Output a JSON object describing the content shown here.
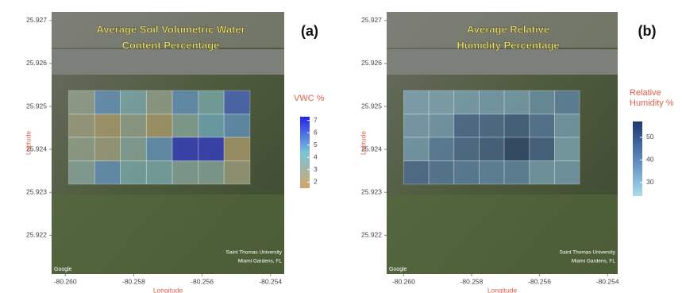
{
  "chart_data": [
    {
      "type": "heatmap",
      "panel_label": "(a)",
      "title": [
        "Average Soil Volumetric Water",
        "Content Percentage"
      ],
      "xlabel": "Longitude",
      "ylabel": "Latitude",
      "xlim": [
        -80.2604,
        -80.2536
      ],
      "ylim": [
        25.9211,
        25.9272
      ],
      "xticks": [
        {
          "value": -80.26,
          "label": "-80.260"
        },
        -80.258,
        -80.256,
        -80.254
      ],
      "yticks": [
        25.927,
        25.926,
        25.925,
        25.924,
        25.923,
        25.922
      ],
      "xbins": [
        -80.2599,
        -80.25914,
        -80.25839,
        -80.25763,
        -80.25687,
        -80.25611,
        -80.25536,
        -80.2546
      ],
      "ybins": [
        25.92537,
        25.92482,
        25.92428,
        25.92373,
        25.92319
      ],
      "values": [
        [
          3,
          5,
          4,
          3,
          5,
          4,
          6
        ],
        [
          2.5,
          2,
          3,
          2,
          3.5,
          4.5,
          5
        ],
        [
          3,
          2.5,
          3.5,
          5,
          7,
          7,
          2
        ],
        [
          3.5,
          5,
          4,
          4,
          3.5,
          3.5,
          2.5
        ]
      ],
      "colorbar": {
        "title": [
          "VWC %"
        ],
        "lim": [
          1.5,
          7.3
        ],
        "ticks": [
          2,
          3,
          4,
          5,
          6,
          7
        ],
        "colors": [
          "#d2a766",
          "#7cc4dc",
          "#2424e6"
        ]
      },
      "attribution": [
        "Saint Thomas University",
        "Miami Gardens, FL"
      ],
      "map_source": "Google"
    },
    {
      "type": "heatmap",
      "panel_label": "(b)",
      "title": [
        "Average Relative",
        "Humidity Percentage"
      ],
      "xlabel": "Longitude",
      "ylabel": "Latitude",
      "xlim": [
        -80.2605,
        -80.2537
      ],
      "ylim": [
        25.9211,
        25.9272
      ],
      "xticks": [
        {
          "value": -80.26,
          "label": "-80.260"
        },
        -80.258,
        -80.256,
        -80.254
      ],
      "yticks": [
        25.927,
        25.926,
        25.925,
        25.924,
        25.923,
        25.922
      ],
      "xbins": [
        -80.26,
        -80.25926,
        -80.25852,
        -80.25778,
        -80.25704,
        -80.2563,
        -80.25556,
        -80.25482
      ],
      "ybins": [
        25.92537,
        25.92482,
        25.92428,
        25.92373,
        25.92319
      ],
      "values": [
        [
          30,
          30,
          31,
          32,
          32,
          35,
          38
        ],
        [
          32,
          33,
          45,
          45,
          48,
          42,
          32
        ],
        [
          33,
          40,
          45,
          48,
          55,
          47,
          30
        ],
        [
          45,
          42,
          40,
          38,
          38,
          32,
          32
        ]
      ],
      "colorbar": {
        "title": [
          "Relative",
          "Humidity %"
        ],
        "lim": [
          24,
          57
        ],
        "ticks": [
          30,
          40,
          50
        ],
        "colors": [
          "#a9dde8",
          "#5a86bc",
          "#1e3670"
        ]
      },
      "attribution": [
        "Saint Thomas University",
        "Miami Gardens, FL"
      ],
      "map_source": "Google"
    }
  ]
}
